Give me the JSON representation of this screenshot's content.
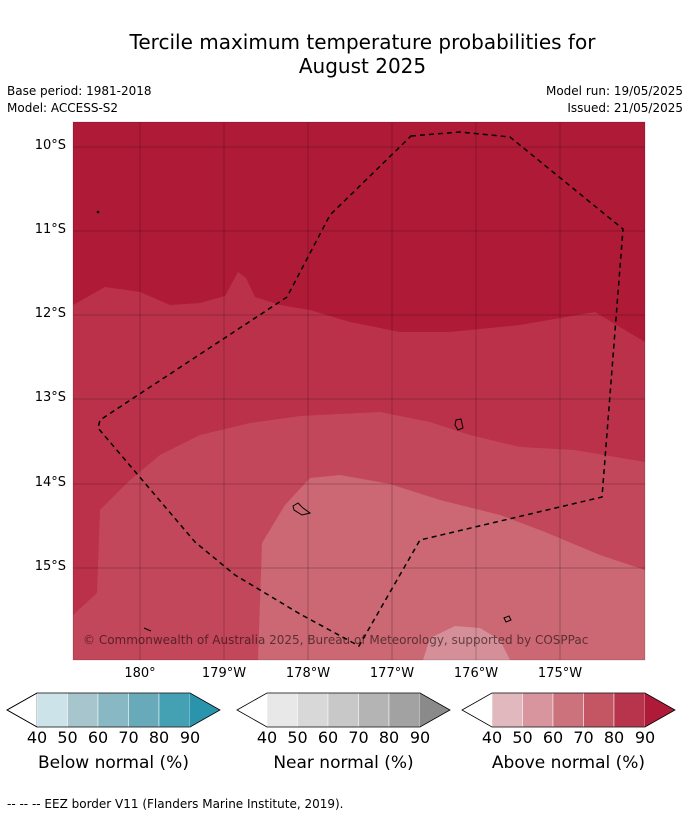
{
  "title_line1": "Tercile maximum temperature probabilities for",
  "title_line2": "August 2025",
  "meta_left": [
    "Base period: 1981-2018",
    "Model: ACCESS-S2"
  ],
  "meta_right": [
    "Model run: 19/05/2025",
    "Issued: 21/05/2025"
  ],
  "lat_ticks": [
    "10°S",
    "11°S",
    "12°S",
    "13°S",
    "14°S",
    "15°S"
  ],
  "lon_ticks": [
    "180°",
    "179°W",
    "178°W",
    "177°W",
    "176°W",
    "175°W"
  ],
  "copyright": "© Commonwealth of Australia 2025, Bureau of Meteorology, supported by COSPPac",
  "colorbars": [
    {
      "label": "Below normal (%)",
      "colors": [
        "#cde3ea",
        "#a6c5cc",
        "#88b8c4",
        "#68aaba",
        "#44a0b3",
        "#2a94ad"
      ]
    },
    {
      "label": "Near normal (%)",
      "colors": [
        "#e8e8e8",
        "#d8d8d8",
        "#c8c8c8",
        "#b4b4b4",
        "#a2a2a2",
        "#8a8a8a"
      ]
    },
    {
      "label": "Above normal (%)",
      "colors": [
        "#e2b8bf",
        "#d8959e",
        "#cc727d",
        "#c45664",
        "#b8344c",
        "#af1a38"
      ]
    }
  ],
  "colorbar_ticks": [
    "40",
    "50",
    "60",
    "70",
    "80",
    "90"
  ],
  "footnote": "--  --  -- EEZ border V11 (Flanders Marine Institute, 2019).",
  "map_colors": {
    "zone_90plus": "#af1b37",
    "zone_80": "#ba3149",
    "zone_70": "#c3475a",
    "zone_60": "#cb6873",
    "zone_50": "#d58f98"
  }
}
